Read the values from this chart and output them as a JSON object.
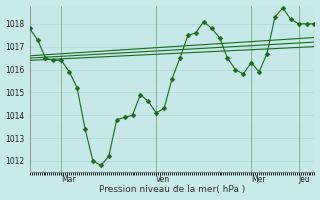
{
  "background_color": "#c8eaea",
  "line_color": "#1a6b1a",
  "xlabel": "Pression niveau de la mer( hPa )",
  "ylim": [
    1011.5,
    1018.8
  ],
  "yticks": [
    1012,
    1013,
    1014,
    1015,
    1016,
    1017,
    1018
  ],
  "xtick_labels": [
    "| Mar",
    "| Ven",
    "| Mer",
    "| Jeu"
  ],
  "main_x": [
    0,
    1,
    2,
    3,
    4,
    5,
    6,
    7,
    8,
    9,
    10,
    11,
    12,
    13,
    14,
    15,
    16,
    17,
    18,
    19,
    20,
    21,
    22,
    23,
    24,
    25,
    26,
    27,
    28,
    29,
    30,
    31,
    32,
    33,
    34,
    35,
    36
  ],
  "main_y": [
    1017.8,
    1017.3,
    1016.5,
    1016.4,
    1016.4,
    1015.9,
    1015.2,
    1013.4,
    1012.0,
    1011.8,
    1012.2,
    1013.8,
    1013.9,
    1014.0,
    1014.9,
    1014.6,
    1014.1,
    1014.3,
    1015.6,
    1016.5,
    1017.5,
    1017.6,
    1018.1,
    1017.8,
    1017.4,
    1016.5,
    1016.0,
    1015.8,
    1016.3,
    1015.9,
    1016.7,
    1018.3,
    1018.7,
    1018.2,
    1018.0,
    1018.0,
    1018.0
  ],
  "flat_lines": [
    [
      0,
      36,
      1016.4,
      1017.0
    ],
    [
      0,
      36,
      1016.5,
      1017.2
    ],
    [
      0,
      36,
      1016.6,
      1017.4
    ]
  ],
  "vline_x": [
    4,
    16,
    28,
    34
  ],
  "xlim": [
    0,
    36
  ]
}
